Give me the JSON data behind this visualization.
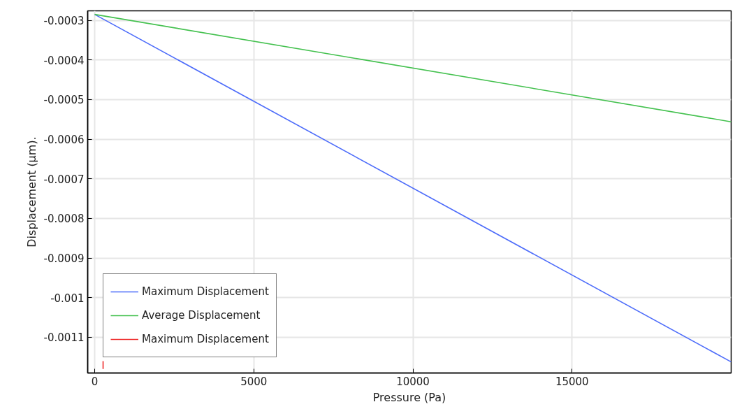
{
  "chart_data": {
    "type": "line",
    "xlabel": "Pressure (Pa)",
    "ylabel": "Displacement (µm).",
    "xlim": [
      -220,
      20000
    ],
    "ylim": [
      -0.00119,
      -0.000276
    ],
    "xticks": [
      0,
      5000,
      10000,
      15000,
      {
        "value": 20000,
        "label": null
      }
    ],
    "yticks": [
      -0.0003,
      -0.0004,
      -0.0005,
      -0.0006,
      -0.0007,
      -0.0008,
      -0.0009,
      -0.001,
      -0.0011
    ],
    "grid": true,
    "legend": "bottom left",
    "tick_labels": "xy",
    "series": [
      {
        "name": "Maximum Displacement",
        "color": "#4d6cfa",
        "x": [
          0,
          20000
        ],
        "values": [
          -0.000285,
          -0.001162
        ]
      },
      {
        "name": "Average Displacement",
        "color": "#44c14f",
        "x": [
          0,
          20000
        ],
        "values": [
          -0.000285,
          -0.000556
        ]
      },
      {
        "name": "Maximum Displacement",
        "color": "#ee2a2a",
        "x": [
          264,
          264
        ],
        "values": [
          -0.00116,
          -0.00118
        ]
      }
    ]
  }
}
